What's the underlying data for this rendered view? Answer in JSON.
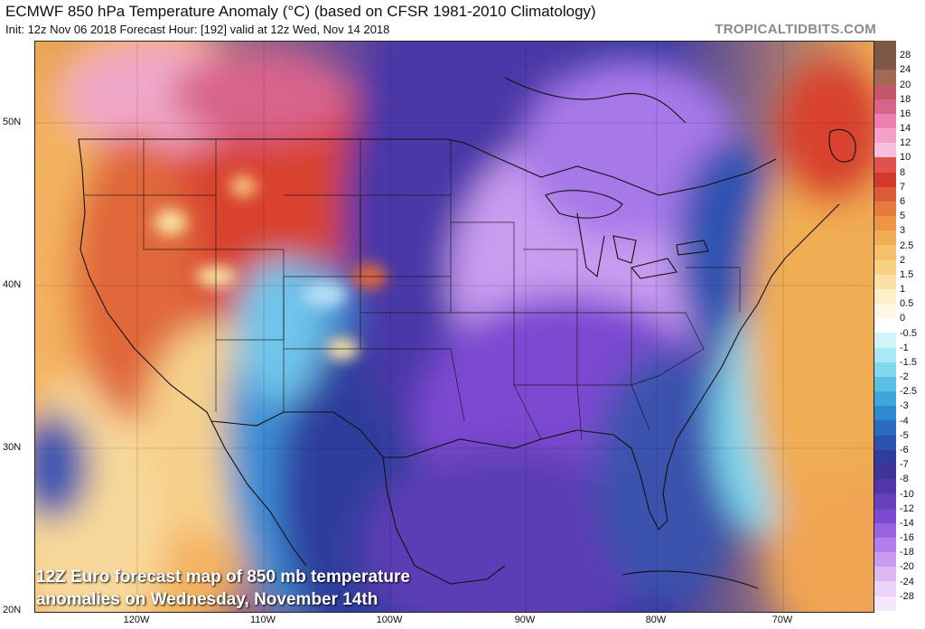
{
  "title": "ECMWF 850 hPa Temperature Anomaly (°C) (based on CFSR 1981-2010 Climatology)",
  "subtitle": "Init: 12z Nov 06 2018   Forecast Hour: [192]   valid at 12z Wed, Nov 14 2018",
  "brand": "TROPICALTIDBITS.COM",
  "caption_line1": "12Z Euro forecast map of 850 mb temperature",
  "caption_line2": "anomalies on Wednesday, November 14th",
  "lat_labels": [
    "50N",
    "40N",
    "30N",
    "20N"
  ],
  "lon_labels": [
    "120W",
    "110W",
    "100W",
    "90W",
    "80W",
    "70W"
  ],
  "colorbar": {
    "labels": [
      "28",
      "24",
      "20",
      "18",
      "16",
      "14",
      "12",
      "10",
      "8",
      "7",
      "6",
      "5",
      "3",
      "2.5",
      "2",
      "1.5",
      "1",
      "0.5",
      "0",
      "-0.5",
      "-1",
      "-1.5",
      "-2",
      "-2.5",
      "-3",
      "-4",
      "-5",
      "-6",
      "-7",
      "-8",
      "-10",
      "-12",
      "-14",
      "-16",
      "-18",
      "-20",
      "-24",
      "-28"
    ],
    "colors": [
      "#7b5744",
      "#a26a55",
      "#c4576b",
      "#d8648c",
      "#ee7fb1",
      "#f6a0c8",
      "#f9c0dd",
      "#e0524d",
      "#d33a2c",
      "#dc5b37",
      "#e57b3d",
      "#ec9544",
      "#f1ad52",
      "#f5c068",
      "#f8d283",
      "#fae2a6",
      "#fcefc9",
      "#fff7e6",
      "#ffffff",
      "#d0f5fb",
      "#a7eaf5",
      "#7fd8ee",
      "#59c0e4",
      "#3da6da",
      "#2f8bd0",
      "#2a6dc0",
      "#2b53ad",
      "#2f3e9c",
      "#3d3597",
      "#4f37a7",
      "#6640bd",
      "#7c4ad0",
      "#9b62e2",
      "#b37deb",
      "#c99cf0",
      "#dcb9f4",
      "#ebd3f8",
      "#f6e8fb"
    ]
  }
}
